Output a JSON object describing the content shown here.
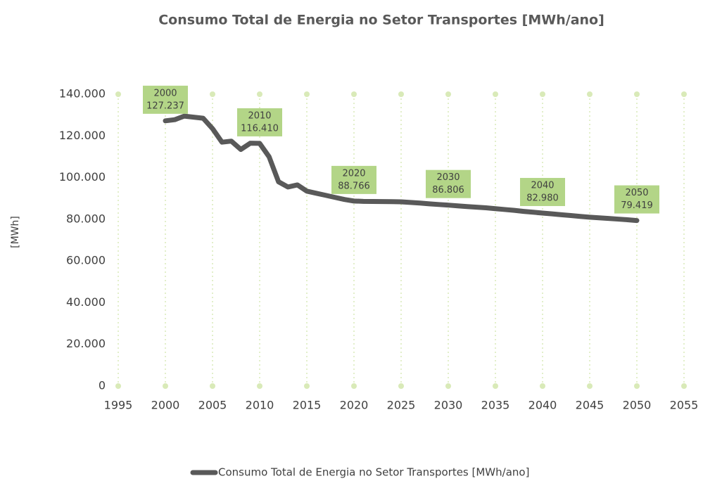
{
  "chart_data": {
    "type": "line",
    "title": "Consumo Total de Energia no Setor Transportes [MWh/ano]",
    "y_label": "[MWh]",
    "x": [
      2000,
      2001,
      2002,
      2003,
      2004,
      2005,
      2006,
      2007,
      2008,
      2009,
      2010,
      2011,
      2012,
      2013,
      2014,
      2015,
      2016,
      2017,
      2018,
      2019,
      2020,
      2021,
      2022,
      2023,
      2024,
      2025,
      2026,
      2027,
      2028,
      2029,
      2030,
      2031,
      2032,
      2033,
      2034,
      2035,
      2036,
      2037,
      2038,
      2039,
      2040,
      2041,
      2042,
      2043,
      2044,
      2045,
      2046,
      2047,
      2048,
      2049,
      2050
    ],
    "series": [
      {
        "name": "Consumo Total de Energia no Setor Transportes [MWh/ano]",
        "color": "#595959",
        "values": [
          127237,
          127800,
          129500,
          129000,
          128500,
          123500,
          117000,
          117500,
          113500,
          116500,
          116410,
          110000,
          98000,
          95500,
          96500,
          93500,
          92500,
          91500,
          90500,
          89500,
          88766,
          88600,
          88550,
          88500,
          88450,
          88400,
          88100,
          87800,
          87400,
          87100,
          86806,
          86450,
          86100,
          85800,
          85500,
          85100,
          84700,
          84300,
          83800,
          83400,
          82980,
          82600,
          82200,
          81800,
          81400,
          81000,
          80700,
          80400,
          80100,
          79800,
          79419
        ],
        "value_labels": [
          "127.237",
          null,
          null,
          null,
          null,
          null,
          null,
          null,
          null,
          null,
          "116.410",
          null,
          null,
          null,
          null,
          null,
          null,
          null,
          null,
          null,
          "88.766",
          null,
          null,
          null,
          null,
          null,
          null,
          null,
          null,
          null,
          "86.806",
          null,
          null,
          null,
          null,
          null,
          null,
          null,
          null,
          null,
          "82.980",
          null,
          null,
          null,
          null,
          null,
          null,
          null,
          null,
          null,
          "79.419"
        ]
      }
    ],
    "xlim": [
      1995,
      2055
    ],
    "xticks": [
      1995,
      2000,
      2005,
      2010,
      2015,
      2020,
      2025,
      2030,
      2035,
      2040,
      2045,
      2050,
      2055
    ],
    "ylim": [
      0,
      140000
    ],
    "yticks": [
      0,
      {
        "value": 20000,
        "label": "20.000"
      },
      {
        "value": 40000,
        "label": "40.000"
      },
      {
        "value": 60000,
        "label": "60.000"
      },
      {
        "value": 80000,
        "label": "80.000"
      },
      {
        "value": 100000,
        "label": "100.000"
      },
      {
        "value": 120000,
        "label": "120.000"
      },
      {
        "value": 140000,
        "label": "140.000"
      }
    ],
    "grid": true,
    "grid_color": "#d9eab8",
    "label_color": "#b3d587",
    "legend": "bottom"
  }
}
